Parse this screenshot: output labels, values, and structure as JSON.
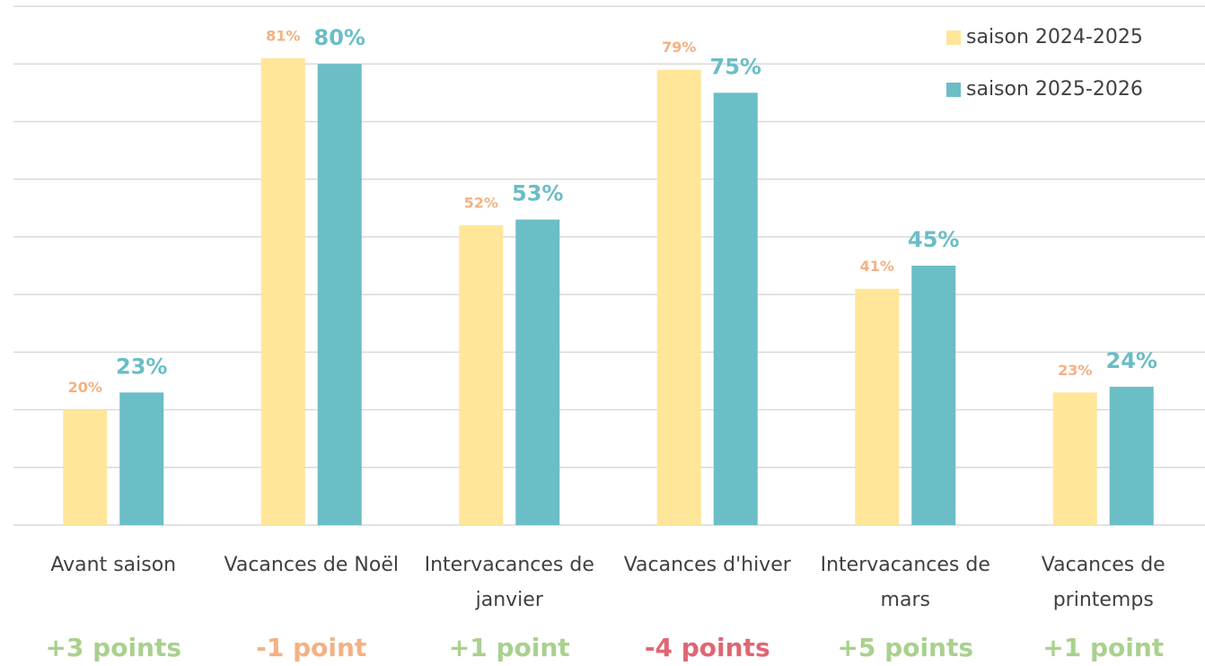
{
  "chart_data": {
    "type": "bar",
    "categories": [
      "Avant saison",
      "Vacances de Noël",
      "Intervacances de janvier",
      "Vacances d'hiver",
      "Intervacances de mars",
      "Vacances de printemps"
    ],
    "series": [
      {
        "name": "saison 2024-2025",
        "color": "#ffe699",
        "label_color": "#f4b183",
        "values": [
          20,
          81,
          52,
          79,
          41,
          23
        ],
        "value_labels": [
          "20%",
          "81%",
          "52%",
          "79%",
          "41%",
          "23%"
        ]
      },
      {
        "name": "saison 2025-2026",
        "color": "#6bbdc6",
        "label_color": "#6bbdc6",
        "values": [
          23,
          80,
          53,
          75,
          45,
          24
        ],
        "value_labels": [
          "23%",
          "80%",
          "53%",
          "75%",
          "45%",
          "24%"
        ]
      }
    ],
    "annotations": [
      {
        "text": "+3 points",
        "color": "#a9d18e"
      },
      {
        "text": "-1 point",
        "color": "#f4b183"
      },
      {
        "text": "+1 point",
        "color": "#a9d18e"
      },
      {
        "text": "-4 points",
        "color": "#e06673"
      },
      {
        "text": "+5 points",
        "color": "#a9d18e"
      },
      {
        "text": "+1 point",
        "color": "#a9d18e"
      }
    ],
    "ylim": [
      0,
      90
    ],
    "yticks": [
      0,
      10,
      20,
      30,
      40,
      50,
      60,
      70,
      80,
      90
    ],
    "grid": true,
    "legend": "top-right"
  }
}
